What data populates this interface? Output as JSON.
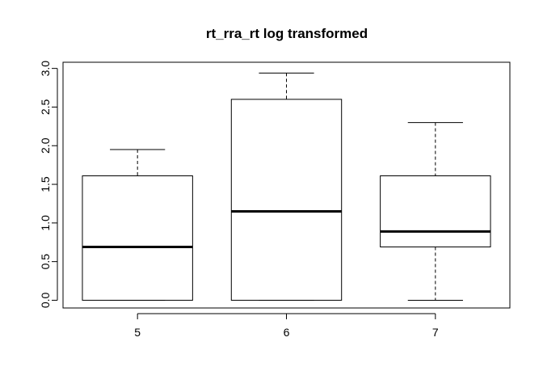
{
  "chart_data": {
    "type": "boxplot",
    "title": "rt_rra_rt log transformed",
    "xlabel": "",
    "ylabel": "",
    "categories": [
      "5",
      "6",
      "7"
    ],
    "boxes": [
      {
        "category": "5",
        "whisker_low": 0.0,
        "q1": 0.0,
        "median": 0.69,
        "q3": 1.61,
        "whisker_high": 1.95
      },
      {
        "category": "6",
        "whisker_low": 0.0,
        "q1": 0.0,
        "median": 1.15,
        "q3": 2.6,
        "whisker_high": 2.94
      },
      {
        "category": "7",
        "whisker_low": 0.0,
        "q1": 0.69,
        "median": 0.89,
        "q3": 1.61,
        "whisker_high": 2.3
      }
    ],
    "y_ticks": [
      "0.0",
      "0.5",
      "1.0",
      "1.5",
      "2.0",
      "2.5",
      "3.0"
    ],
    "ylim": [
      -0.1,
      3.08
    ],
    "grid": false,
    "legend": "none"
  }
}
